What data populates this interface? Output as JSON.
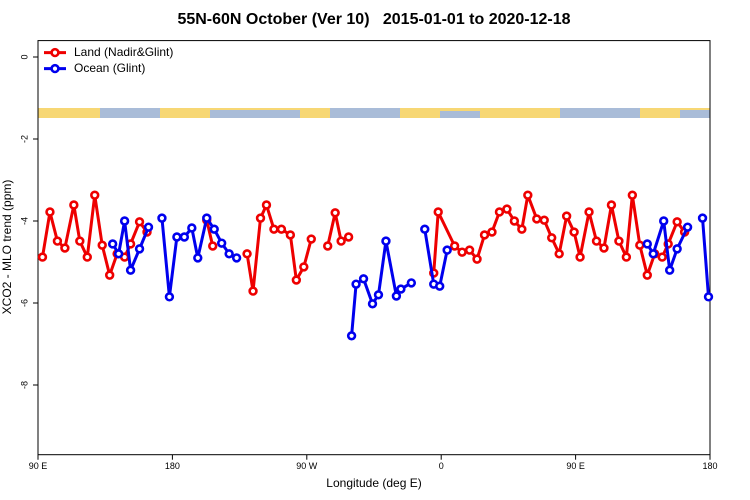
{
  "chart_data": {
    "type": "line",
    "title": "55N-60N October (Ver 10)   2015-01-01 to 2020-12-18",
    "x_label": "Longitude (deg E)",
    "y_label": "XCO2 - MLO trend (ppm)",
    "xlim": [
      90,
      540
    ],
    "xticks": [
      {
        "value": 90,
        "label": "90 E"
      },
      180,
      {
        "value": 270,
        "label": "90 W"
      },
      {
        "value": 360,
        "label": "0"
      },
      {
        "value": 450,
        "label": "90 E"
      },
      {
        "value": 540,
        "label": "180"
      }
    ],
    "ylim": [
      -9.7,
      0.4
    ],
    "yticks": [
      0,
      -2,
      -4,
      -6,
      -8
    ],
    "legend": "top-left",
    "series": [
      {
        "name": "Land (Nadir&Glint)",
        "color": "#ee0000",
        "x": [
          93,
          98,
          103,
          108,
          114,
          118,
          123,
          128,
          133,
          138,
          143,
          148,
          152,
          158,
          163,
          null,
          203,
          207,
          null,
          230,
          234,
          239,
          243,
          248,
          253,
          259,
          263,
          268,
          273,
          null,
          284,
          289,
          293,
          298,
          null,
          355,
          358,
          369,
          374,
          379,
          384,
          389,
          394,
          399,
          404,
          409,
          414,
          418,
          424,
          429,
          434,
          439,
          444,
          449,
          453,
          459,
          464,
          469,
          474,
          479,
          484,
          488,
          493,
          498,
          503,
          508,
          512,
          518,
          523
        ],
        "values": [
          -4.88,
          -3.78,
          -4.49,
          -4.66,
          -3.61,
          -4.49,
          -4.88,
          -3.37,
          -4.59,
          -5.32,
          -4.8,
          -4.88,
          -4.56,
          -4.02,
          -4.27,
          null,
          -3.98,
          -4.61,
          null,
          -4.8,
          -5.71,
          -3.93,
          -3.61,
          -4.2,
          -4.2,
          -4.34,
          -5.44,
          -5.12,
          -4.44,
          null,
          -4.61,
          -3.8,
          -4.49,
          -4.39,
          null,
          -5.27,
          -3.78,
          -4.61,
          -4.76,
          -4.71,
          -4.93,
          -4.34,
          -4.27,
          -3.78,
          -3.71,
          -4.0,
          -4.2,
          -3.37,
          -3.95,
          -3.98,
          -4.41,
          -4.8,
          -3.88,
          -4.27,
          -4.88,
          -3.78,
          -4.49,
          -4.66,
          -3.61,
          -4.49,
          -4.88,
          -3.37,
          -4.59,
          -5.32,
          -4.8,
          -4.88,
          -4.56,
          -4.02,
          -4.27
        ]
      },
      {
        "name": "Ocean (Glint)",
        "color": "#0000ee",
        "x": [
          140,
          144,
          148,
          152,
          158,
          164,
          null,
          173,
          178,
          183,
          188,
          193,
          197,
          203,
          208,
          213,
          218,
          223,
          null,
          300,
          303,
          308,
          314,
          318,
          323,
          330,
          333,
          340,
          null,
          349,
          355,
          359,
          364,
          null,
          498,
          502,
          509,
          513,
          518,
          525,
          null,
          535,
          539
        ],
        "values": [
          -4.56,
          -4.8,
          -4.0,
          -5.2,
          -4.68,
          -4.15,
          null,
          -3.93,
          -5.85,
          -4.39,
          -4.39,
          -4.17,
          -4.9,
          -3.93,
          -4.2,
          -4.54,
          -4.8,
          -4.9,
          null,
          -6.8,
          -5.54,
          -5.41,
          -6.02,
          -5.8,
          -4.49,
          -5.83,
          -5.66,
          -5.51,
          null,
          -4.2,
          -5.54,
          -5.59,
          -4.71,
          null,
          -4.56,
          -4.8,
          -4.0,
          -5.2,
          -4.68,
          -4.15,
          null,
          -3.93,
          -5.85
        ]
      }
    ]
  }
}
